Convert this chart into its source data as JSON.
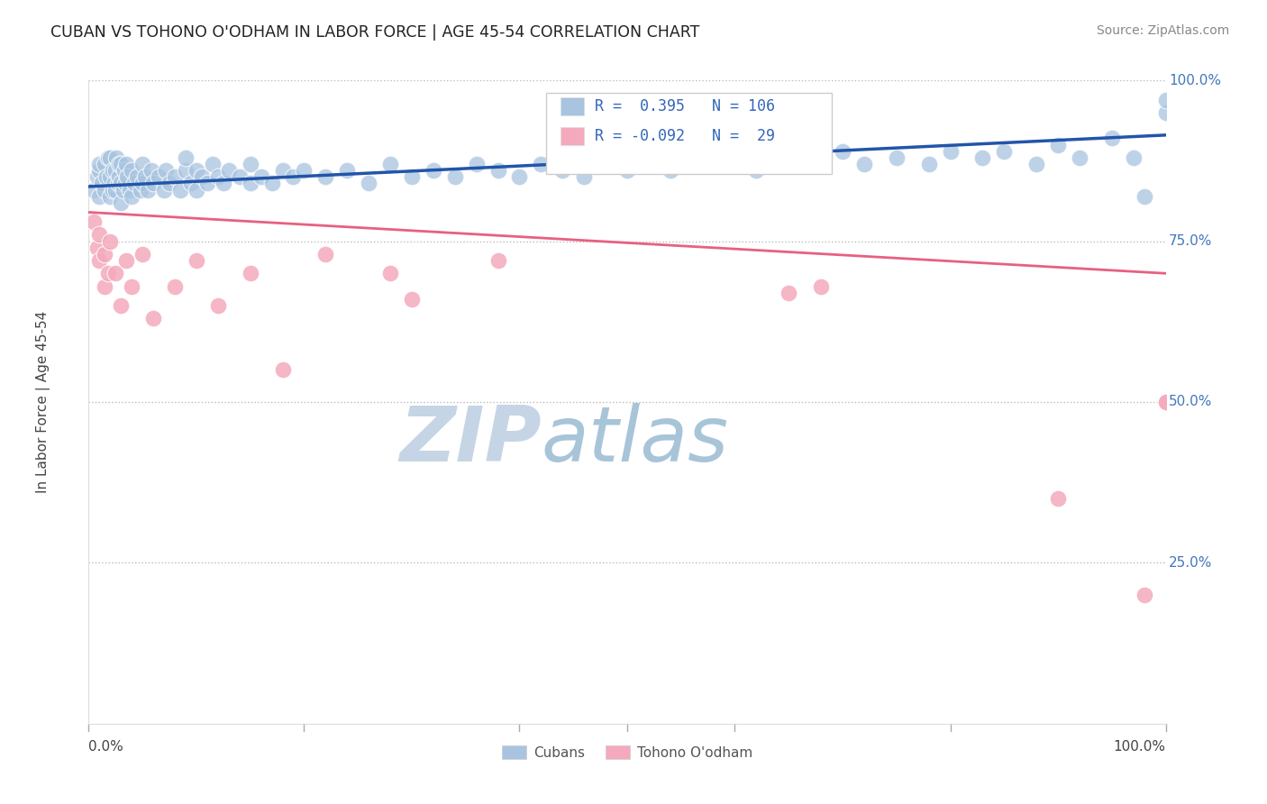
{
  "title": "CUBAN VS TOHONO O'ODHAM IN LABOR FORCE | AGE 45-54 CORRELATION CHART",
  "source": "Source: ZipAtlas.com",
  "ylabel": "In Labor Force | Age 45-54",
  "xlim": [
    0.0,
    1.0
  ],
  "ylim": [
    0.0,
    1.0
  ],
  "yticks": [
    0.25,
    0.5,
    0.75,
    1.0
  ],
  "blue_R": 0.395,
  "blue_N": 106,
  "pink_R": -0.092,
  "pink_N": 29,
  "blue_color": "#A8C4E0",
  "pink_color": "#F4AABC",
  "blue_line_color": "#2255AA",
  "pink_line_color": "#E86080",
  "background_color": "#FFFFFF",
  "grid_color": "#BBBBBB",
  "watermark_zip_color": "#C5D5E5",
  "watermark_atlas_color": "#A8C4D8",
  "title_color": "#222222",
  "axis_label_color": "#444444",
  "right_tick_color": "#4477BB",
  "legend_color": "#3366BB",
  "blue_scatter_x": [
    0.005,
    0.008,
    0.01,
    0.01,
    0.01,
    0.012,
    0.015,
    0.015,
    0.016,
    0.018,
    0.02,
    0.02,
    0.02,
    0.022,
    0.022,
    0.024,
    0.025,
    0.025,
    0.026,
    0.027,
    0.028,
    0.028,
    0.03,
    0.03,
    0.03,
    0.032,
    0.033,
    0.034,
    0.035,
    0.036,
    0.038,
    0.04,
    0.04,
    0.042,
    0.045,
    0.048,
    0.05,
    0.05,
    0.052,
    0.055,
    0.058,
    0.06,
    0.065,
    0.07,
    0.072,
    0.075,
    0.08,
    0.085,
    0.09,
    0.09,
    0.095,
    0.1,
    0.1,
    0.105,
    0.11,
    0.115,
    0.12,
    0.125,
    0.13,
    0.14,
    0.15,
    0.15,
    0.16,
    0.17,
    0.18,
    0.19,
    0.2,
    0.22,
    0.24,
    0.26,
    0.28,
    0.3,
    0.32,
    0.34,
    0.36,
    0.38,
    0.4,
    0.42,
    0.44,
    0.46,
    0.48,
    0.5,
    0.52,
    0.54,
    0.56,
    0.58,
    0.6,
    0.62,
    0.64,
    0.66,
    0.68,
    0.7,
    0.72,
    0.75,
    0.78,
    0.8,
    0.83,
    0.85,
    0.88,
    0.9,
    0.92,
    0.95,
    0.97,
    0.98,
    1.0,
    1.0
  ],
  "blue_scatter_y": [
    0.83,
    0.85,
    0.82,
    0.86,
    0.87,
    0.84,
    0.83,
    0.87,
    0.85,
    0.88,
    0.82,
    0.85,
    0.88,
    0.83,
    0.86,
    0.84,
    0.83,
    0.86,
    0.88,
    0.84,
    0.85,
    0.87,
    0.81,
    0.84,
    0.87,
    0.83,
    0.86,
    0.84,
    0.87,
    0.85,
    0.83,
    0.82,
    0.86,
    0.84,
    0.85,
    0.83,
    0.84,
    0.87,
    0.85,
    0.83,
    0.86,
    0.84,
    0.85,
    0.83,
    0.86,
    0.84,
    0.85,
    0.83,
    0.86,
    0.88,
    0.84,
    0.83,
    0.86,
    0.85,
    0.84,
    0.87,
    0.85,
    0.84,
    0.86,
    0.85,
    0.84,
    0.87,
    0.85,
    0.84,
    0.86,
    0.85,
    0.86,
    0.85,
    0.86,
    0.84,
    0.87,
    0.85,
    0.86,
    0.85,
    0.87,
    0.86,
    0.85,
    0.87,
    0.86,
    0.85,
    0.87,
    0.86,
    0.87,
    0.86,
    0.88,
    0.87,
    0.87,
    0.86,
    0.88,
    0.87,
    0.87,
    0.89,
    0.87,
    0.88,
    0.87,
    0.89,
    0.88,
    0.89,
    0.87,
    0.9,
    0.88,
    0.91,
    0.88,
    0.82,
    0.95,
    0.97
  ],
  "pink_scatter_x": [
    0.005,
    0.008,
    0.01,
    0.01,
    0.015,
    0.015,
    0.018,
    0.02,
    0.025,
    0.03,
    0.035,
    0.04,
    0.05,
    0.06,
    0.08,
    0.1,
    0.12,
    0.15,
    0.18,
    0.22,
    0.28,
    0.3,
    0.38,
    0.65,
    0.68,
    0.9,
    0.98,
    1.0,
    1.0
  ],
  "pink_scatter_y": [
    0.78,
    0.74,
    0.72,
    0.76,
    0.68,
    0.73,
    0.7,
    0.75,
    0.7,
    0.65,
    0.72,
    0.68,
    0.73,
    0.63,
    0.68,
    0.72,
    0.65,
    0.7,
    0.55,
    0.73,
    0.7,
    0.66,
    0.72,
    0.67,
    0.68,
    0.35,
    0.2,
    0.5,
    0.5
  ]
}
